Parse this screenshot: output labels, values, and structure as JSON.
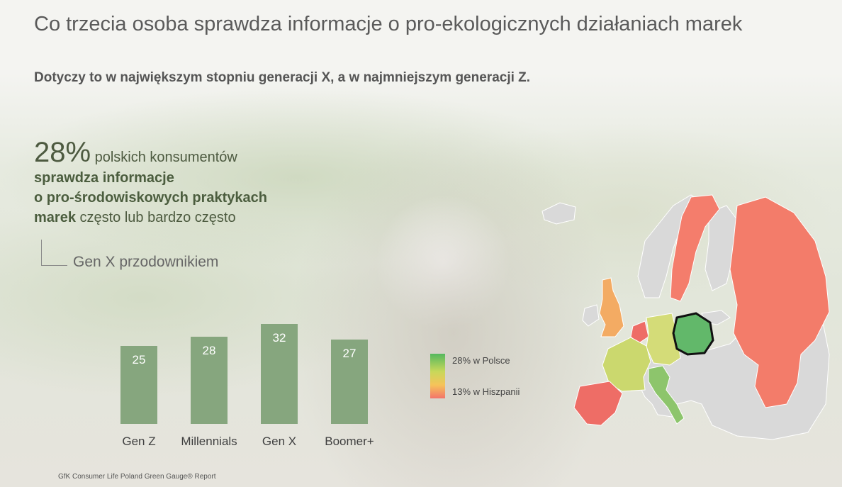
{
  "header": {
    "title": "Co trzecia osoba sprawdza informacje o pro-ekologicznych działaniach marek",
    "subtitle": "Dotyczy to w największym stopniu generacji X, a w najmniejszym generacji Z."
  },
  "stat": {
    "percent": "28%",
    "rest": " polskich konsumentów",
    "bold_line1": "sprawdza informacje",
    "bold_line2": "o pro-środowiskowych praktykach",
    "bold_word": "marek",
    "end": " często lub bardzo często"
  },
  "note": "Gen X przodownikiem",
  "chart_data": {
    "type": "bar",
    "categories": [
      "Gen Z",
      "Millennials",
      "Gen X",
      "Boomer+"
    ],
    "values": [
      25,
      28,
      32,
      27
    ],
    "title": "",
    "xlabel": "",
    "ylabel": "",
    "bar_color": "#86a67e"
  },
  "legend": {
    "top": "28% w Polsce",
    "bottom": "13% w Hiszpanii",
    "high_color": "#55b85f",
    "low_color": "#f3746a"
  },
  "map_colors": {
    "poland": "#62b86a",
    "spain": "#ee6d66",
    "sweden": "#f47d6c",
    "russia": "#f37c6a",
    "uk": "#f3ab63",
    "germany": "#d4dc78",
    "france": "#cbd86e",
    "italy": "#8dc56c",
    "neutral": "#d9d9d9"
  },
  "source": "GfK Consumer Life Poland Green Gauge® Report"
}
